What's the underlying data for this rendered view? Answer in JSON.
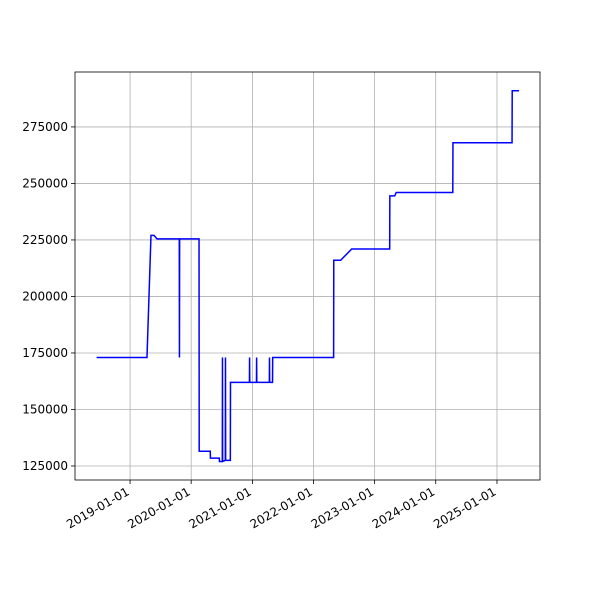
{
  "chart_data": {
    "type": "line",
    "color": "#0000ff",
    "grid": true,
    "x": [
      "2018-06-15",
      "2019-04-12",
      "2019-05-06",
      "2019-05-24",
      "2019-06-11",
      "2019-10-22",
      "2019-10-23",
      "2019-10-24",
      "2020-02-17",
      "2020-02-18",
      "2020-04-24",
      "2020-04-25",
      "2020-06-17",
      "2020-06-18",
      "2020-07-05",
      "2020-07-06",
      "2020-07-07",
      "2020-07-23",
      "2020-07-24",
      "2020-07-25",
      "2020-08-22",
      "2020-08-23",
      "2020-12-14",
      "2020-12-15",
      "2020-12-16",
      "2021-01-25",
      "2021-01-26",
      "2021-01-27",
      "2021-04-12",
      "2021-04-13",
      "2021-04-14",
      "2021-05-01",
      "2021-05-02",
      "2022-05-01",
      "2022-05-02",
      "2022-06-12",
      "2022-08-17",
      "2023-04-01",
      "2023-04-02",
      "2023-05-01",
      "2023-05-10",
      "2024-04-12",
      "2024-04-13",
      "2025-04-01",
      "2025-04-02",
      "2025-05-13"
    ],
    "values": [
      173000,
      173000,
      227000,
      227000,
      225500,
      225500,
      173000,
      225500,
      225500,
      131500,
      131500,
      128500,
      128500,
      127000,
      127000,
      173000,
      127000,
      127500,
      173000,
      127500,
      127500,
      162000,
      162000,
      173000,
      162000,
      162000,
      173000,
      162000,
      162000,
      173000,
      162000,
      162000,
      173000,
      173000,
      216000,
      216000,
      221000,
      221000,
      244500,
      244500,
      246000,
      246000,
      268000,
      268000,
      291000,
      291000
    ],
    "xlim": [
      "2018-02-06",
      "2025-09-15"
    ],
    "xticks": [
      "2019-01-01",
      "2020-01-01",
      "2021-01-01",
      "2022-01-01",
      "2023-01-01",
      "2024-01-01",
      "2025-01-01"
    ],
    "ylim": [
      118800,
      299300
    ],
    "yticks": [
      125000,
      150000,
      175000,
      200000,
      225000,
      250000,
      275000
    ]
  }
}
